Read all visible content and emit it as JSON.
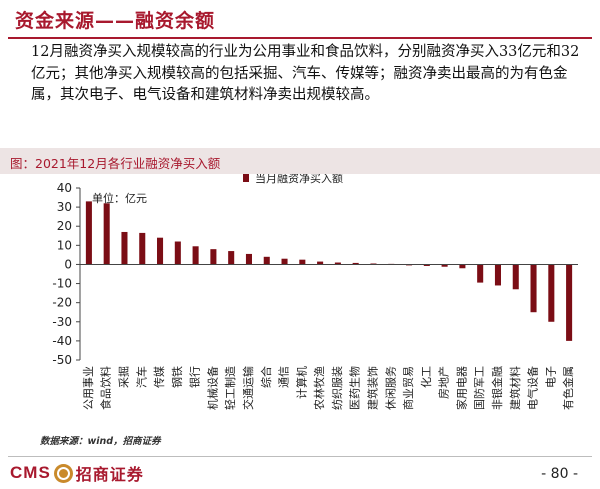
{
  "header": {
    "title": "资金来源——融资余额"
  },
  "summary": "12月融资净买入规模较高的行业为公用事业和食品饮料，分别融资净买入33亿元和32亿元；其他净买入规模较高的包括采掘、汽车、传媒等；融资净卖出最高的为有色金属，其次电子、电气设备和建筑材料净卖出规模较高。",
  "figure": {
    "caption": "图：2021年12月各行业融资净买入额"
  },
  "chart_data": {
    "type": "bar",
    "unit": "单位：亿元",
    "ylim": [
      -50,
      40
    ],
    "yticks": [
      -50,
      -40,
      -30,
      -20,
      -10,
      0,
      10,
      20,
      30,
      40
    ],
    "series": [
      {
        "name": "当月融资净买入额",
        "color": "#7b0d15"
      }
    ],
    "categories": [
      "公用事业",
      "食品饮料",
      "采掘",
      "汽车",
      "传媒",
      "钢铁",
      "银行",
      "机械设备",
      "轻工制造",
      "交通运输",
      "综合",
      "通信",
      "计算机",
      "农林牧渔",
      "纺织服装",
      "医药生物",
      "建筑装饰",
      "休闲服务",
      "商业贸易",
      "化工",
      "房地产",
      "家用电器",
      "国防军工",
      "非银金融",
      "建筑材料",
      "电气设备",
      "电子",
      "有色金属"
    ],
    "values": [
      33,
      32,
      17,
      16.5,
      14,
      12,
      9.5,
      8,
      7,
      5.5,
      4,
      3,
      2.5,
      1.5,
      1,
      0.8,
      0.5,
      0.3,
      -0.5,
      -0.8,
      -1.2,
      -2,
      -9.5,
      -11,
      -13,
      -25,
      -30,
      -40
    ]
  },
  "source": "数据来源：wind，招商证券",
  "footer": {
    "logo_en": "CMS",
    "logo_cn": "招商证券",
    "page": "- 80 -"
  }
}
